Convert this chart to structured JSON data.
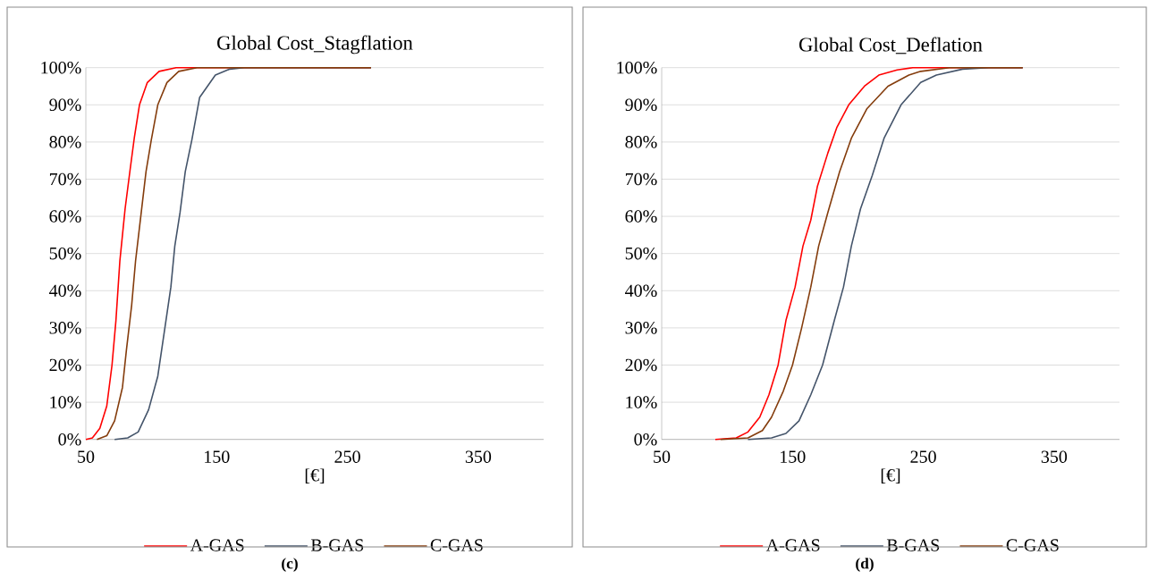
{
  "chart_data": [
    {
      "type": "line",
      "title": "Global Cost_Stagflation",
      "xlabel": "[€]",
      "xlim": [
        50,
        400
      ],
      "xticks": [
        50,
        150,
        250,
        350
      ],
      "ylim": [
        0,
        100
      ],
      "yticks": [
        {
          "value": 0,
          "label": "0%"
        },
        {
          "value": 10,
          "label": "10%"
        },
        {
          "value": 20,
          "label": "20%"
        },
        {
          "value": 30,
          "label": "30%"
        },
        {
          "value": 40,
          "label": "40%"
        },
        {
          "value": 50,
          "label": "50%"
        },
        {
          "value": 60,
          "label": "60%"
        },
        {
          "value": 70,
          "label": "70%"
        },
        {
          "value": 80,
          "label": "80%"
        },
        {
          "value": 90,
          "label": "90%"
        },
        {
          "value": 100,
          "label": "100%"
        }
      ],
      "grid": "y",
      "legend": "bottom",
      "marker": "none",
      "line_style": "solid",
      "annotations": [
        "(c)"
      ],
      "series": [
        {
          "name": "A-GAS",
          "color": "#ff0000",
          "x": [
            50,
            55,
            60.7,
            66,
            70,
            73,
            76,
            80,
            84,
            87,
            91,
            97,
            106,
            119,
            268
          ],
          "values": [
            0,
            0.4,
            3,
            9,
            20,
            32,
            48,
            62,
            73,
            81,
            90,
            96,
            99,
            100,
            100
          ]
        },
        {
          "name": "B-GAS",
          "color": "#44546a",
          "x": [
            72,
            82,
            90,
            98,
            105,
            110,
            115,
            118,
            122,
            126,
            131,
            137,
            149,
            160,
            171,
            268
          ],
          "values": [
            0,
            0.4,
            2,
            8,
            17,
            29,
            41,
            52,
            61,
            72,
            80.5,
            92,
            98,
            99.6,
            100,
            100
          ]
        },
        {
          "name": "C-GAS",
          "color": "#843c0c",
          "x": [
            58.5,
            66,
            72,
            78,
            81,
            85,
            88,
            92,
            96,
            100,
            105,
            112,
            121,
            135,
            268
          ],
          "values": [
            0,
            1,
            5,
            14,
            24,
            36,
            48,
            60,
            72,
            80.5,
            90,
            96,
            99,
            100,
            100
          ]
        }
      ]
    },
    {
      "type": "line",
      "title": "Global Cost_Deflation",
      "xlabel": "[€]",
      "xlim": [
        50,
        400
      ],
      "xticks": [
        50,
        150,
        250,
        350
      ],
      "ylim": [
        0,
        100
      ],
      "yticks": [
        {
          "value": 0,
          "label": "0%"
        },
        {
          "value": 10,
          "label": "10%"
        },
        {
          "value": 20,
          "label": "20%"
        },
        {
          "value": 30,
          "label": "30%"
        },
        {
          "value": 40,
          "label": "40%"
        },
        {
          "value": 50,
          "label": "50%"
        },
        {
          "value": 60,
          "label": "60%"
        },
        {
          "value": 70,
          "label": "70%"
        },
        {
          "value": 80,
          "label": "80%"
        },
        {
          "value": 90,
          "label": "90%"
        },
        {
          "value": 100,
          "label": "100%"
        }
      ],
      "grid": "y",
      "legend": "bottom",
      "marker": "none",
      "line_style": "solid",
      "annotations": [
        "(d)"
      ],
      "series": [
        {
          "name": "A-GAS",
          "color": "#ff0000",
          "x": [
            91,
            107,
            116,
            125,
            132,
            139,
            145,
            152,
            158,
            164,
            169,
            177,
            184,
            193,
            205,
            216,
            230,
            242,
            326
          ],
          "values": [
            0,
            0.4,
            2,
            6,
            12,
            20,
            32,
            41,
            52,
            59,
            68,
            77,
            84,
            90,
            95,
            98,
            99.4,
            100,
            100
          ]
        },
        {
          "name": "B-GAS",
          "color": "#44546a",
          "x": [
            116,
            134,
            145,
            155,
            164,
            173,
            182,
            189,
            195,
            202,
            211,
            220,
            233,
            248,
            260,
            280,
            300,
            326
          ],
          "values": [
            0,
            0.4,
            1.6,
            5,
            12,
            20,
            32,
            41,
            52,
            62,
            71,
            81,
            90,
            96,
            98,
            99.6,
            100,
            100
          ]
        },
        {
          "name": "C-GAS",
          "color": "#843c0c",
          "x": [
            95,
            116,
            127,
            134,
            143,
            150,
            157,
            164,
            170,
            177,
            186,
            195,
            207,
            223,
            239,
            248,
            270,
            326
          ],
          "values": [
            0,
            0.4,
            2.4,
            6,
            13,
            20,
            30,
            41,
            52,
            61,
            72,
            81,
            89,
            95,
            98,
            99,
            100,
            100
          ]
        }
      ]
    }
  ]
}
